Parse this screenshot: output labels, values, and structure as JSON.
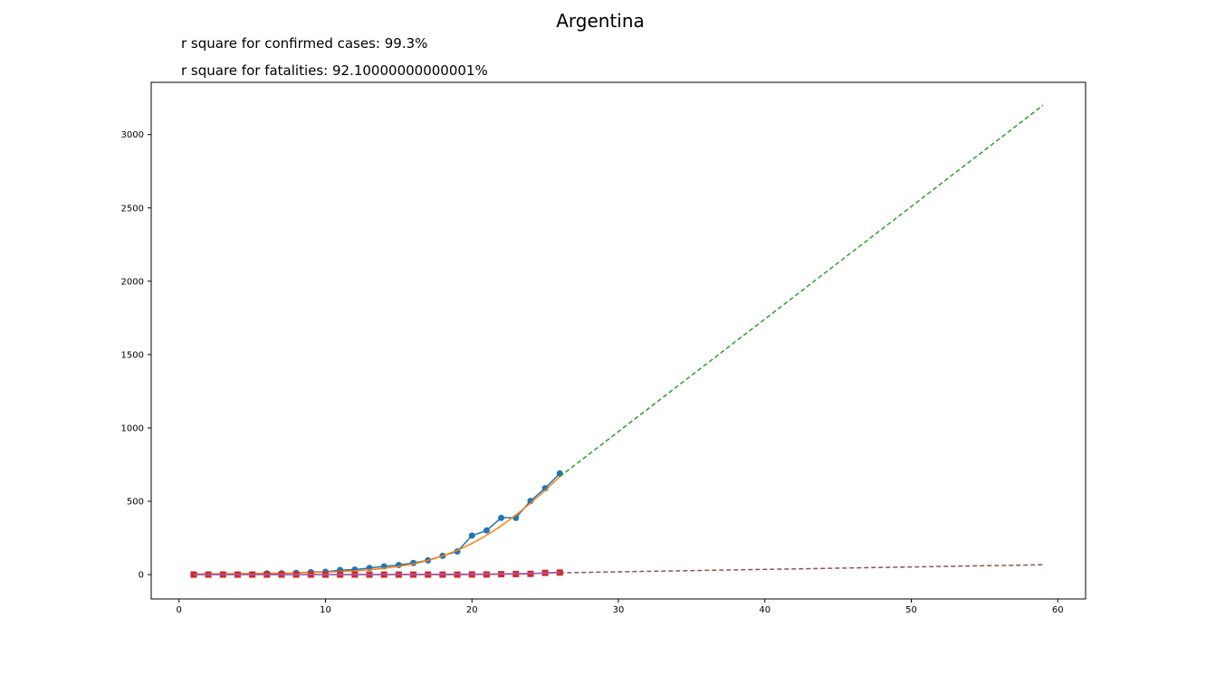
{
  "chart_data": {
    "type": "line",
    "title": "Argentina",
    "annotations": [
      "r square for confirmed cases: 99.3%",
      "r square for fatalities: 92.10000000000001%"
    ],
    "xlim": [
      -1.9,
      61.9
    ],
    "ylim": [
      -166,
      3356
    ],
    "xticks": [
      0,
      10,
      20,
      30,
      40,
      50,
      60
    ],
    "yticks": [
      0,
      500,
      1000,
      1500,
      2000,
      2500,
      3000
    ],
    "grid": false,
    "colors": {
      "confirmed": "#1f77b4",
      "confirmed_fit": "#ff7f0e",
      "confirmed_projection": "#2ca02c",
      "fatalities": "#d62728",
      "fatalities_fit": "#9467bd",
      "fatalities_projection": "#8c564b"
    },
    "series": [
      {
        "key": "confirmed",
        "style": "line-circle",
        "x": [
          1,
          2,
          3,
          4,
          5,
          6,
          7,
          8,
          9,
          10,
          11,
          12,
          13,
          14,
          15,
          16,
          17,
          18,
          19,
          20,
          21,
          22,
          23,
          24,
          25,
          26
        ],
        "values": [
          1,
          1,
          1,
          1,
          2,
          8,
          9,
          12,
          17,
          19,
          31,
          34,
          45,
          56,
          65,
          79,
          97,
          128,
          158,
          266,
          301,
          387,
          387,
          502,
          589,
          690
        ]
      },
      {
        "key": "confirmed_fit",
        "style": "solid",
        "x": [
          1,
          2,
          3,
          4,
          5,
          6,
          7,
          8,
          9,
          10,
          11,
          12,
          13,
          14,
          15,
          16,
          17,
          18,
          19,
          20,
          21,
          22,
          23,
          24,
          25,
          26
        ],
        "values": [
          4,
          5,
          6,
          7,
          8,
          9,
          10,
          12,
          14,
          17,
          21,
          26,
          33,
          43,
          56,
          73,
          96,
          127,
          165,
          212,
          268,
          333,
          406,
          487,
          574,
          668
        ]
      },
      {
        "key": "confirmed_projection",
        "style": "dashed",
        "x": [
          26,
          59
        ],
        "values": [
          668,
          3200
        ]
      },
      {
        "key": "fatalities",
        "style": "line-square",
        "x": [
          1,
          2,
          3,
          4,
          5,
          6,
          7,
          8,
          9,
          10,
          11,
          12,
          13,
          14,
          15,
          16,
          17,
          18,
          19,
          20,
          21,
          22,
          23,
          24,
          25,
          26
        ],
        "values": [
          0,
          0,
          0,
          0,
          0,
          0,
          0,
          0,
          0,
          0,
          0,
          0,
          0,
          0,
          0,
          0,
          0,
          0,
          0,
          1,
          1,
          3,
          4,
          5,
          12,
          14
        ]
      },
      {
        "key": "fatalities_fit",
        "style": "solid",
        "x": [
          1,
          5,
          10,
          15,
          20,
          22,
          24,
          26
        ],
        "values": [
          0,
          0,
          0,
          1,
          3,
          5,
          8,
          12
        ]
      },
      {
        "key": "fatalities_projection",
        "style": "dashed",
        "x": [
          26,
          59
        ],
        "values": [
          12,
          67
        ]
      }
    ]
  }
}
